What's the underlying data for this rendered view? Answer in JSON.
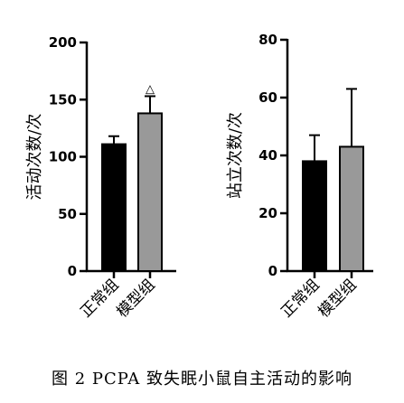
{
  "caption": "图 2  PCPA 致失眠小鼠自主活动的影响",
  "chart_data": [
    {
      "type": "bar",
      "ylabel": "活动次数/次",
      "ylim": [
        0,
        200
      ],
      "yticks": [
        0,
        50,
        100,
        150,
        200
      ],
      "categories": [
        "正常组",
        "模型组"
      ],
      "values": [
        111,
        138
      ],
      "errors": [
        7,
        15
      ],
      "colors": [
        "#000000",
        "#999999"
      ],
      "annotations": [
        {
          "category": "模型组",
          "text": "△"
        }
      ]
    },
    {
      "type": "bar",
      "ylabel": "站立次数/次",
      "ylim": [
        0,
        80
      ],
      "yticks": [
        0,
        20,
        40,
        60,
        80
      ],
      "categories": [
        "正常组",
        "模型组"
      ],
      "values": [
        38,
        43
      ],
      "errors": [
        9,
        20
      ],
      "colors": [
        "#000000",
        "#999999"
      ],
      "annotations": []
    }
  ]
}
